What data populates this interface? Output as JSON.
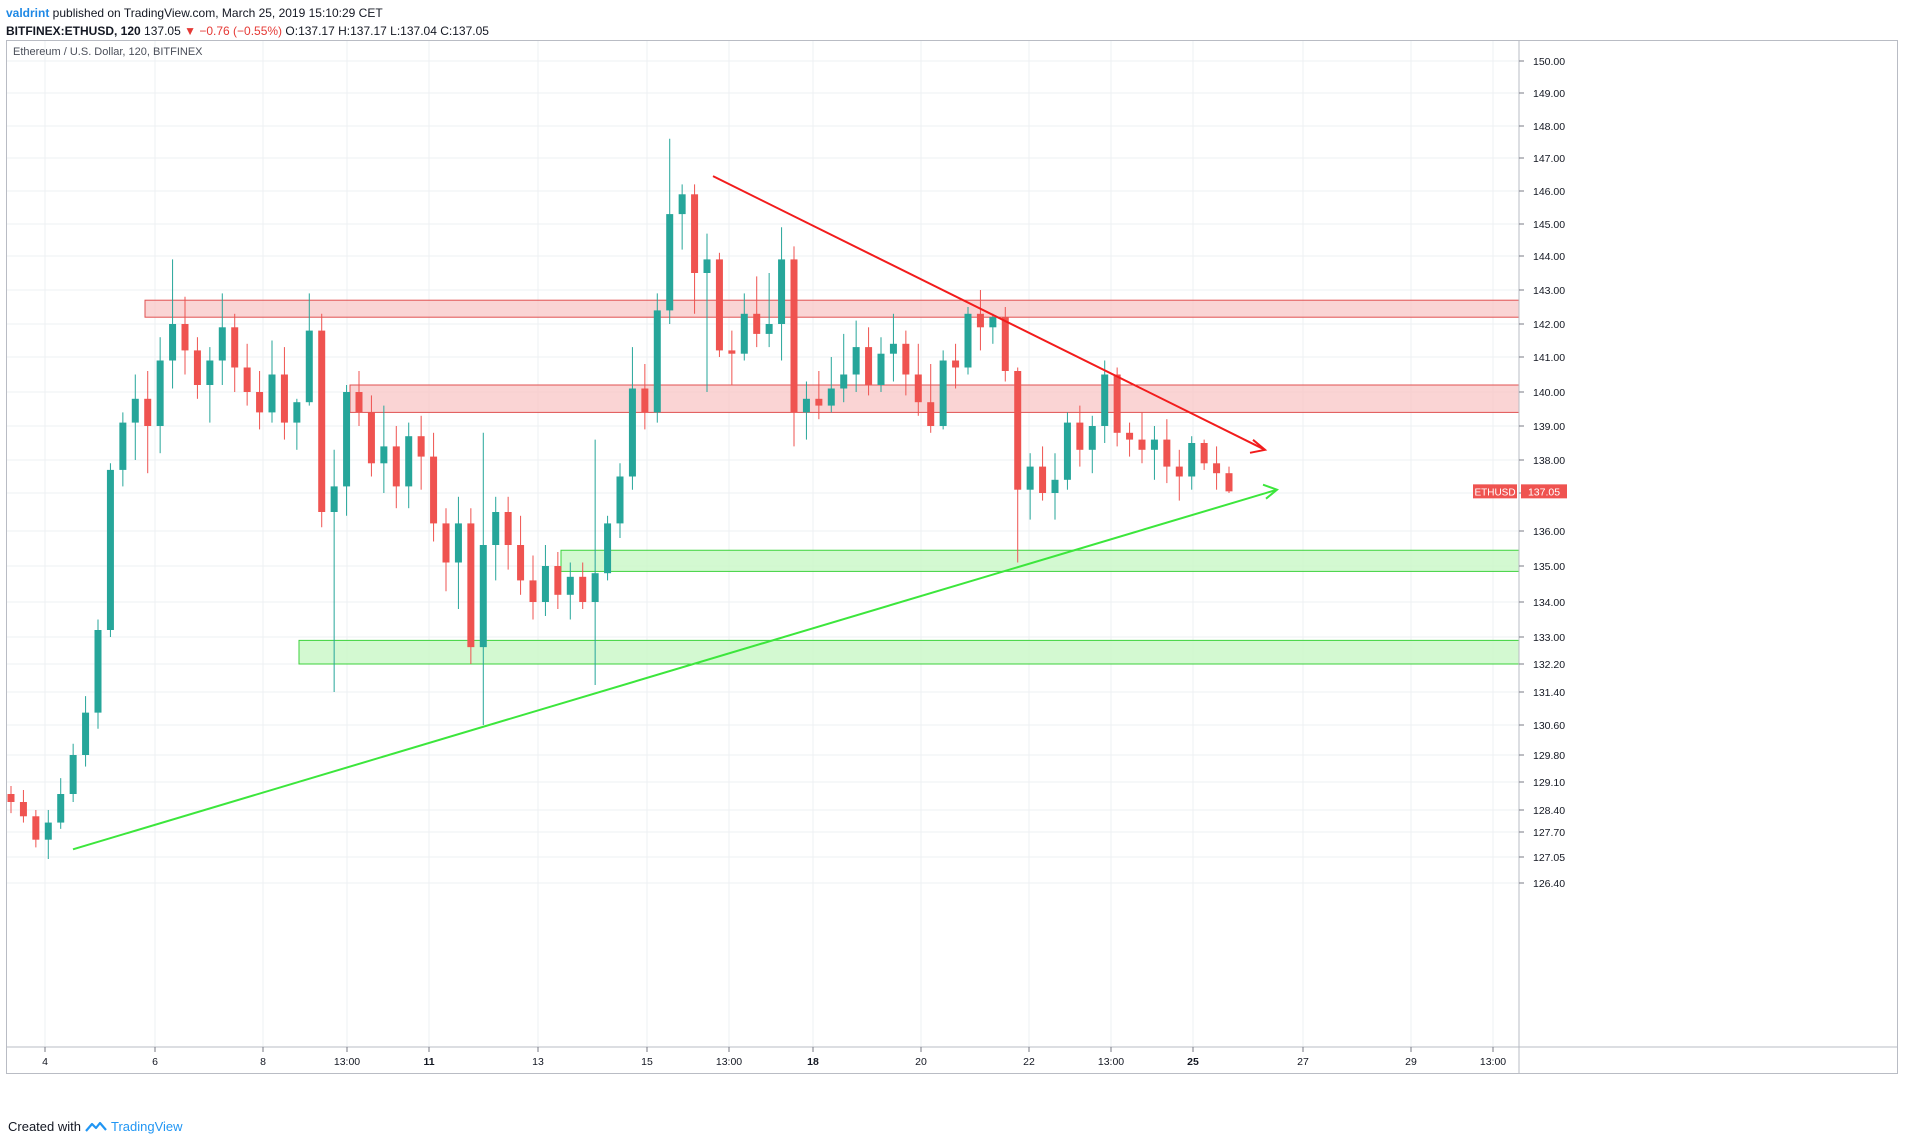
{
  "header": {
    "publisher": "valdrint",
    "published_text": " published on TradingView.com, March 25, 2019 15:10:29 CET",
    "symbol": "BITFINEX:ETHUSD, 120",
    "last": "137.05",
    "change_arrow": "▼",
    "change": "−0.76 (−0.55%)",
    "ohlc_o": "O:137.17",
    "ohlc_h": "H:137.17",
    "ohlc_l": "L:137.04",
    "ohlc_c": "C:137.05"
  },
  "footer": {
    "created_with": "Created with",
    "brand": "TradingView",
    "logo_icon": "tradingview-logo-icon"
  },
  "chart_data": {
    "type": "candlestick",
    "title": "Ethereum / U.S. Dollar, 120, BITFINEX",
    "y_ticks": [
      "150.00",
      "149.00",
      "148.00",
      "147.00",
      "146.00",
      "145.00",
      "144.00",
      "143.00",
      "142.00",
      "141.00",
      "140.00",
      "139.00",
      "138.00",
      "137.00",
      "136.00",
      "135.00",
      "134.00",
      "133.00",
      "132.20",
      "131.40",
      "130.60",
      "129.80",
      "129.10",
      "128.40",
      "127.70",
      "127.05",
      "126.40"
    ],
    "y_scale": "log",
    "x_ticks": [
      "4",
      "6",
      "8",
      "13:00",
      "11",
      "13",
      "15",
      "13:00",
      "18",
      "20",
      "22",
      "13:00",
      "25",
      "27",
      "29",
      "13:00"
    ],
    "x_bold_ticks": [
      "11",
      "18",
      "25"
    ],
    "last_price_label": {
      "symbol": "ETHUSD",
      "value": "137.05",
      "color": "#ef5350"
    },
    "colors": {
      "up": "#26a69a",
      "down": "#ef5350",
      "resistance_zone": "#f8c6c6",
      "support_zone": "#c8f7c5",
      "resistance_line": "#f21c1c",
      "support_line": "#3ce63c",
      "grid": "#eef0f3"
    },
    "resistance_zones": [
      [
        142.2,
        142.7
      ],
      [
        139.4,
        140.2
      ]
    ],
    "support_zones": [
      [
        134.85,
        135.45
      ],
      [
        132.2,
        132.9
      ]
    ],
    "descending_trendline": {
      "from": [
        142,
        146.45
      ],
      "to": [
        210,
        138.3
      ]
    },
    "ascending_trendline": {
      "from": [
        11,
        127.25
      ],
      "to": [
        211,
        137.1
      ]
    },
    "x_index_ticks": [
      7,
      26,
      45,
      59,
      73,
      92,
      111,
      125,
      139,
      158,
      177,
      191,
      205,
      224,
      243,
      257
    ],
    "candles_approx": [
      [
        128.8,
        129.0,
        128.3,
        128.6
      ],
      [
        128.6,
        128.9,
        128.0,
        128.2
      ],
      [
        128.2,
        128.4,
        127.3,
        127.5
      ],
      [
        127.5,
        128.4,
        127.0,
        128.0
      ],
      [
        128.0,
        129.2,
        127.8,
        128.8
      ],
      [
        128.8,
        130.1,
        128.6,
        129.8
      ],
      [
        129.8,
        131.3,
        129.5,
        130.9
      ],
      [
        130.9,
        133.5,
        130.5,
        133.2
      ],
      [
        133.2,
        137.9,
        133.0,
        137.7
      ],
      [
        137.7,
        139.4,
        137.2,
        139.1
      ],
      [
        139.1,
        140.5,
        138.0,
        139.8
      ],
      [
        139.8,
        140.6,
        137.6,
        139.0
      ],
      [
        139.0,
        141.6,
        138.2,
        140.9
      ],
      [
        140.9,
        143.9,
        140.1,
        142.0
      ],
      [
        142.0,
        142.8,
        140.5,
        141.2
      ],
      [
        141.2,
        141.6,
        139.8,
        140.2
      ],
      [
        140.2,
        141.3,
        139.1,
        140.9
      ],
      [
        140.9,
        142.9,
        140.2,
        141.9
      ],
      [
        141.9,
        142.3,
        140.0,
        140.7
      ],
      [
        140.7,
        141.4,
        139.6,
        140.0
      ],
      [
        140.0,
        140.6,
        138.9,
        139.4
      ],
      [
        139.4,
        141.5,
        139.1,
        140.5
      ],
      [
        140.5,
        141.3,
        138.6,
        139.1
      ],
      [
        139.1,
        139.8,
        138.3,
        139.7
      ],
      [
        139.7,
        142.9,
        139.6,
        141.8
      ],
      [
        141.8,
        142.3,
        136.1,
        136.5
      ],
      [
        136.5,
        138.3,
        131.4,
        137.2
      ],
      [
        137.2,
        140.2,
        136.4,
        140.0
      ],
      [
        140.0,
        140.6,
        139.0,
        139.4
      ],
      [
        139.4,
        139.9,
        137.5,
        137.9
      ],
      [
        137.9,
        139.6,
        137.0,
        138.4
      ],
      [
        138.4,
        139.0,
        136.6,
        137.2
      ],
      [
        137.2,
        139.1,
        136.6,
        138.7
      ],
      [
        138.7,
        139.3,
        137.1,
        138.1
      ],
      [
        138.1,
        138.8,
        135.7,
        136.2
      ],
      [
        136.2,
        136.6,
        134.3,
        135.1
      ],
      [
        135.1,
        136.9,
        133.8,
        136.2
      ],
      [
        136.2,
        136.6,
        132.2,
        132.7
      ],
      [
        132.7,
        138.8,
        130.6,
        135.6
      ],
      [
        135.6,
        136.9,
        134.6,
        136.5
      ],
      [
        136.5,
        136.9,
        134.9,
        135.6
      ],
      [
        135.6,
        136.4,
        134.2,
        134.6
      ],
      [
        134.6,
        135.3,
        133.5,
        134.0
      ],
      [
        134.0,
        135.6,
        133.6,
        135.0
      ],
      [
        135.0,
        135.4,
        133.8,
        134.2
      ],
      [
        134.2,
        135.1,
        133.5,
        134.7
      ],
      [
        134.7,
        135.1,
        133.8,
        134.0
      ],
      [
        134.0,
        138.6,
        131.6,
        134.8
      ],
      [
        134.8,
        136.4,
        134.6,
        136.2
      ],
      [
        136.2,
        137.9,
        135.8,
        137.5
      ],
      [
        137.5,
        141.3,
        137.1,
        140.1
      ],
      [
        140.1,
        140.8,
        138.9,
        139.4
      ],
      [
        139.4,
        142.9,
        139.1,
        142.4
      ],
      [
        142.4,
        147.6,
        142.0,
        145.3
      ],
      [
        145.3,
        146.2,
        144.2,
        145.9
      ],
      [
        145.9,
        146.2,
        142.3,
        143.5
      ],
      [
        143.5,
        144.7,
        140.0,
        143.9
      ],
      [
        143.9,
        144.1,
        141.0,
        141.2
      ],
      [
        141.2,
        141.8,
        140.2,
        141.1
      ],
      [
        141.1,
        142.9,
        140.9,
        142.3
      ],
      [
        142.3,
        143.4,
        141.3,
        141.7
      ],
      [
        141.7,
        143.5,
        141.3,
        142.0
      ],
      [
        142.0,
        144.9,
        140.9,
        143.9
      ],
      [
        143.9,
        144.3,
        138.4,
        139.4
      ],
      [
        139.4,
        140.3,
        138.6,
        139.8
      ],
      [
        139.8,
        140.6,
        139.2,
        139.6
      ],
      [
        139.6,
        141.0,
        139.4,
        140.1
      ],
      [
        140.1,
        141.7,
        139.7,
        140.5
      ],
      [
        140.5,
        142.1,
        140.0,
        141.3
      ],
      [
        141.3,
        141.9,
        139.9,
        140.2
      ],
      [
        140.2,
        141.6,
        140.0,
        141.1
      ],
      [
        141.1,
        142.3,
        140.3,
        141.4
      ],
      [
        141.4,
        141.8,
        139.9,
        140.5
      ],
      [
        140.5,
        141.4,
        139.3,
        139.7
      ],
      [
        139.7,
        140.8,
        138.8,
        139.0
      ],
      [
        139.0,
        141.2,
        138.9,
        140.9
      ],
      [
        140.9,
        141.4,
        140.1,
        140.7
      ],
      [
        140.7,
        142.5,
        140.5,
        142.3
      ],
      [
        142.3,
        143.0,
        141.2,
        141.9
      ],
      [
        141.9,
        142.3,
        141.4,
        142.2
      ],
      [
        142.2,
        142.5,
        140.3,
        140.6
      ],
      [
        140.6,
        140.7,
        135.1,
        137.1
      ],
      [
        137.1,
        138.2,
        136.3,
        137.8
      ],
      [
        137.8,
        138.4,
        136.8,
        137.0
      ],
      [
        137.0,
        138.2,
        136.3,
        137.4
      ],
      [
        137.4,
        139.4,
        137.1,
        139.1
      ],
      [
        139.1,
        139.6,
        137.8,
        138.3
      ],
      [
        138.3,
        139.3,
        137.6,
        139.0
      ],
      [
        139.0,
        140.9,
        138.5,
        140.5
      ],
      [
        140.5,
        140.7,
        138.4,
        138.8
      ],
      [
        138.8,
        139.1,
        138.1,
        138.6
      ],
      [
        138.6,
        139.4,
        137.9,
        138.3
      ],
      [
        138.3,
        139.0,
        137.4,
        138.6
      ],
      [
        138.6,
        139.2,
        137.3,
        137.8
      ],
      [
        137.8,
        138.3,
        136.8,
        137.5
      ],
      [
        137.5,
        138.7,
        137.1,
        138.5
      ],
      [
        138.5,
        138.6,
        137.7,
        137.9
      ],
      [
        137.9,
        138.4,
        137.1,
        137.6
      ],
      [
        137.6,
        137.8,
        137.0,
        137.05
      ]
    ]
  }
}
